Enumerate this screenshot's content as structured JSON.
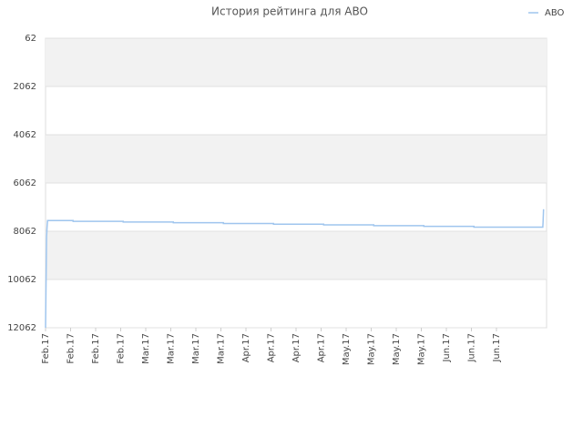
{
  "chart_data": {
    "type": "line",
    "title": "История рейтинга для ABO",
    "x": [
      0,
      0.04,
      0.06,
      0.08,
      1.1,
      1.1,
      3.1,
      3.1,
      5.1,
      5.1,
      7.1,
      7.1,
      9.1,
      9.1,
      11.1,
      11.1,
      13.1,
      13.1,
      15.1,
      15.1,
      17.1,
      17.1,
      19.85,
      19.86,
      19.88
    ],
    "series": [
      {
        "name": "ABO",
        "color": "#9fc5ee",
        "values": [
          12062,
          8300,
          7900,
          7620,
          7620,
          7650,
          7650,
          7680,
          7680,
          7710,
          7710,
          7740,
          7740,
          7770,
          7770,
          7800,
          7800,
          7830,
          7830,
          7860,
          7860,
          7890,
          7890,
          7700,
          7150
        ]
      }
    ],
    "xlim": [
      0,
      20
    ],
    "xticks": [
      {
        "value": 0,
        "label": "Feb.17"
      },
      {
        "value": 1,
        "label": "Feb.17"
      },
      {
        "value": 2,
        "label": "Feb.17"
      },
      {
        "value": 3,
        "label": "Feb.17"
      },
      {
        "value": 4,
        "label": "Mar.17"
      },
      {
        "value": 5,
        "label": "Mar.17"
      },
      {
        "value": 6,
        "label": "Mar.17"
      },
      {
        "value": 7,
        "label": "Mar.17"
      },
      {
        "value": 8,
        "label": "Apr.17"
      },
      {
        "value": 9,
        "label": "Apr.17"
      },
      {
        "value": 10,
        "label": "Apr.17"
      },
      {
        "value": 11,
        "label": "Apr.17"
      },
      {
        "value": 12,
        "label": "May.17"
      },
      {
        "value": 13,
        "label": "May.17"
      },
      {
        "value": 14,
        "label": "May.17"
      },
      {
        "value": 15,
        "label": "May.17"
      },
      {
        "value": 16,
        "label": "Jun.17"
      },
      {
        "value": 17,
        "label": "Jun.17"
      },
      {
        "value": 18,
        "label": "Jun.17"
      }
    ],
    "ylim": [
      12062,
      62
    ],
    "yticks": [
      62,
      2062,
      4062,
      6062,
      8062,
      10062,
      12062
    ],
    "grid": true,
    "legend": "top-right"
  }
}
